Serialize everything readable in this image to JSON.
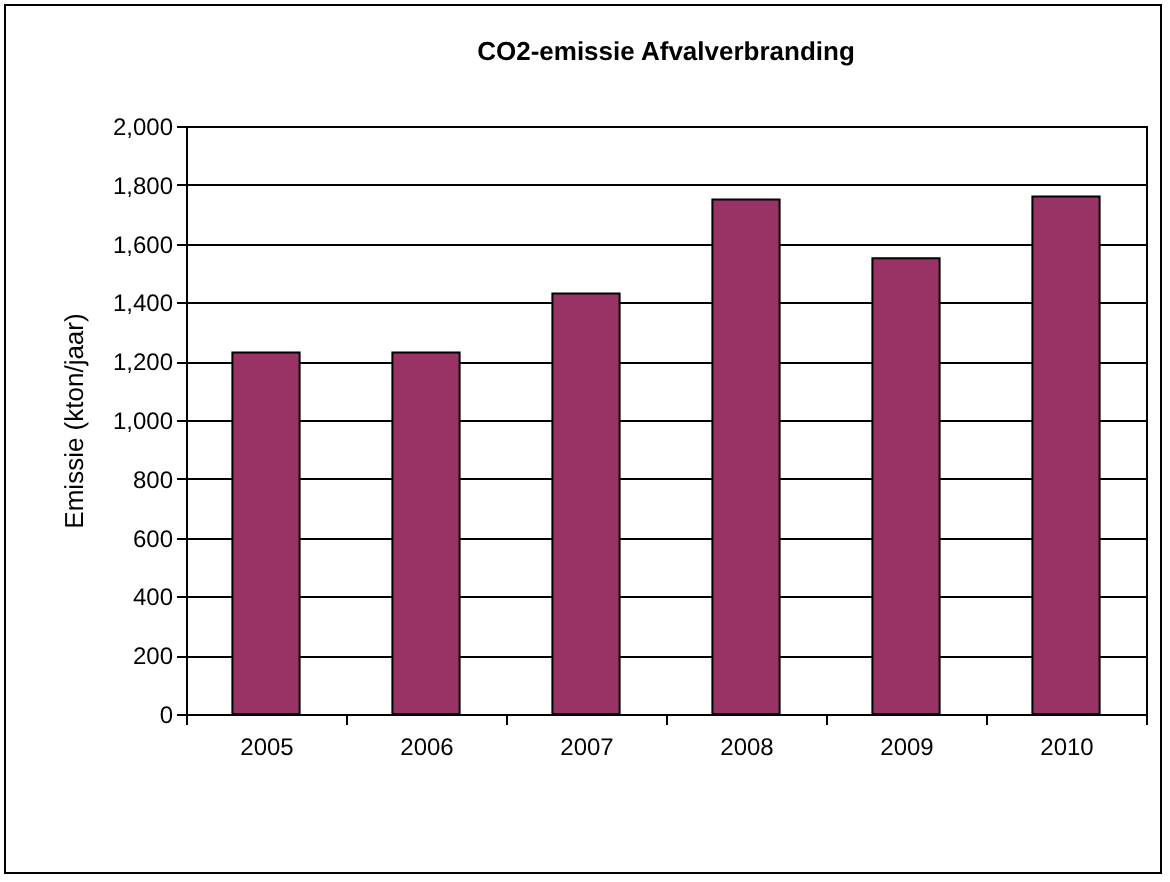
{
  "chart_data": {
    "type": "bar",
    "title": "CO2-emissie Afvalverbranding",
    "ylabel": "Emissie (kton/jaar)",
    "categories": [
      "2005",
      "2006",
      "2007",
      "2008",
      "2009",
      "2010"
    ],
    "series": [
      {
        "color": "#993366",
        "values": [
          1230,
          1230,
          1430,
          1750,
          1550,
          1760
        ]
      }
    ],
    "ylim": [
      0,
      2000
    ],
    "yticks": [
      {
        "value": 0,
        "label": "0"
      },
      {
        "value": 200,
        "label": "200"
      },
      {
        "value": 400,
        "label": "400"
      },
      {
        "value": 600,
        "label": "600"
      },
      {
        "value": 800,
        "label": "800"
      },
      {
        "value": 1000,
        "label": "1,000"
      },
      {
        "value": 1200,
        "label": "1,200"
      },
      {
        "value": 1400,
        "label": "1,400"
      },
      {
        "value": 1600,
        "label": "1,600"
      },
      {
        "value": 1800,
        "label": "1,800"
      },
      {
        "value": 2000,
        "label": "2,000"
      }
    ],
    "grid": "y",
    "legend": false
  }
}
